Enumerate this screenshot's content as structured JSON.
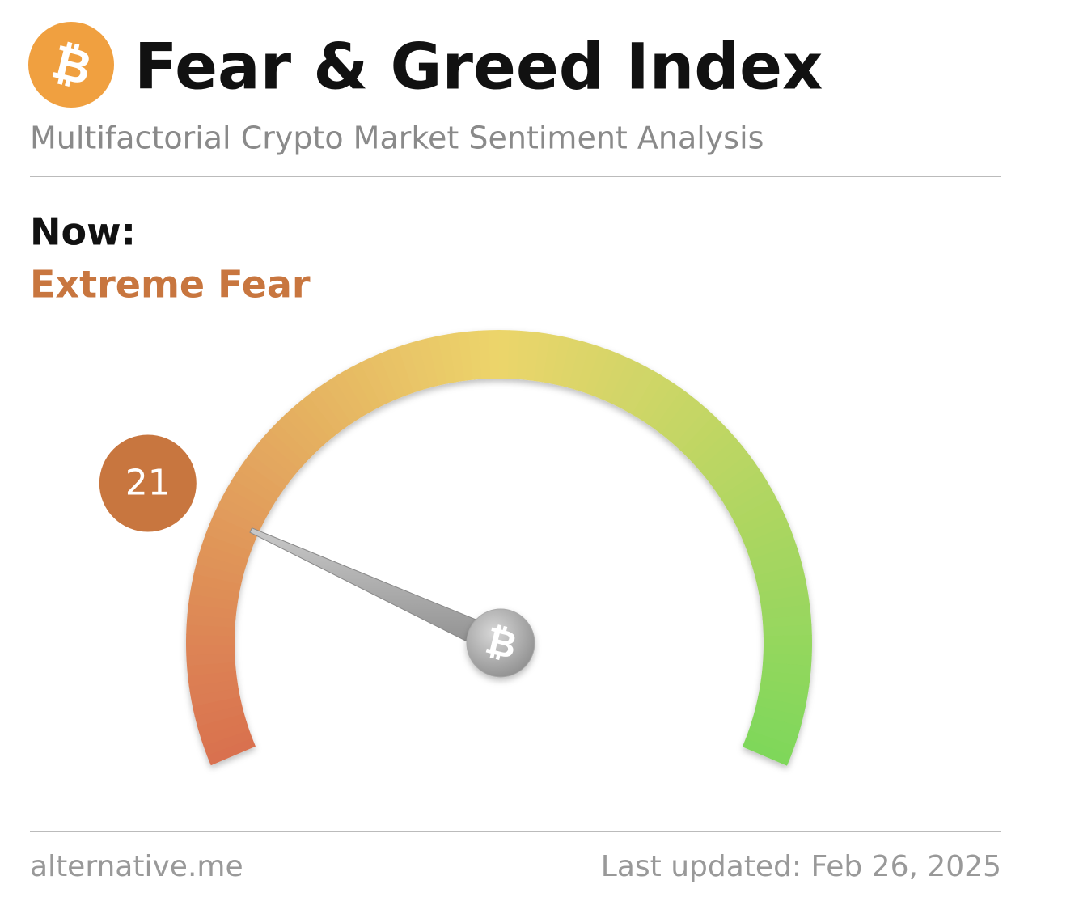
{
  "chart_data": {
    "type": "gauge",
    "logo_symbol": "₿",
    "title": "Fear & Greed Index",
    "subtitle": "Multifactorial Crypto Market Sentiment Analysis",
    "now_label": "Now:",
    "classification": "Extreme Fear",
    "value": 21,
    "ylim": [
      0,
      100
    ],
    "colors": [
      "#d9714f",
      "#ecd56b",
      "#7fd75a"
    ],
    "value_color": "#c8763f",
    "source": "alternative.me",
    "updated": "Last updated: Feb 26, 2025"
  }
}
